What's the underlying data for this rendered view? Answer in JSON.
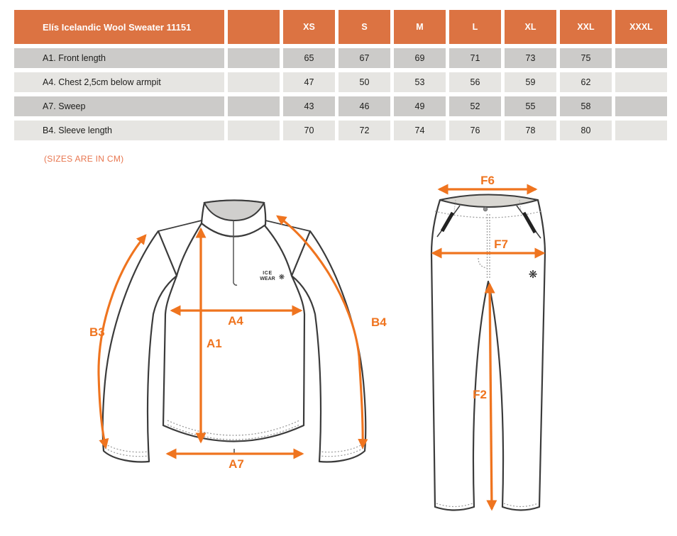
{
  "table": {
    "title": "Elís Icelandic Wool Sweater 11151",
    "sizes": [
      "XS",
      "S",
      "M",
      "L",
      "XL",
      "XXL",
      "XXXL"
    ],
    "rows": [
      {
        "label": "A1. Front length",
        "values": [
          "65",
          "67",
          "69",
          "71",
          "73",
          "75",
          ""
        ]
      },
      {
        "label": "A4. Chest 2,5cm below armpit",
        "values": [
          "47",
          "50",
          "53",
          "56",
          "59",
          "62",
          ""
        ]
      },
      {
        "label": "A7. Sweep",
        "values": [
          "43",
          "46",
          "49",
          "52",
          "55",
          "58",
          ""
        ]
      },
      {
        "label": "B4. Sleeve length",
        "values": [
          "70",
          "72",
          "74",
          "76",
          "78",
          "80",
          ""
        ]
      }
    ]
  },
  "note": "(SIZES ARE IN CM)",
  "sweater": {
    "labels": {
      "b3": "B3",
      "a4": "A4",
      "a1": "A1",
      "b4": "B4",
      "a7": "A7"
    },
    "logo": {
      "line1": "ICE",
      "line2": "WEAR",
      "snowflake": "❋"
    }
  },
  "pants": {
    "labels": {
      "f6": "F6",
      "f7": "F7",
      "f2": "F2"
    },
    "snowflake": "❋"
  },
  "colors": {
    "header_orange": "#DC7342",
    "arrow_orange": "#EF741F",
    "note_orange": "#E8764F",
    "row_dark": "#CCCBC9",
    "row_light": "#E6E5E2",
    "outline_gray": "#3B3B3B",
    "collar_fill": "#D0CFCD",
    "waistband_fill": "#D9D7D2"
  }
}
